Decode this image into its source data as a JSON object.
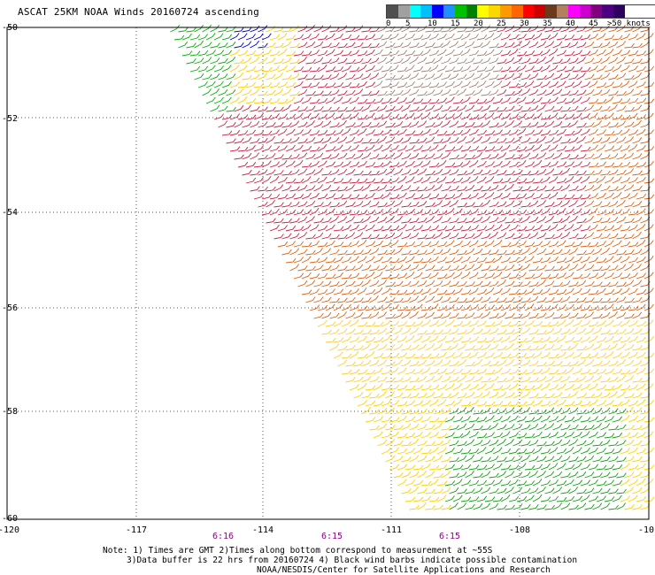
{
  "title": "ASCAT 25KM NOAA Winds 20160724 ascending",
  "legend": {
    "colors": [
      "#505050",
      "#a0a0a0",
      "#00ffff",
      "#00bfff",
      "#0000ff",
      "#1e90ff",
      "#00c000",
      "#008000",
      "#ffff00",
      "#ffd700",
      "#ff9900",
      "#ff6600",
      "#ff0000",
      "#cc0000",
      "#6b3a1e",
      "#b08060",
      "#ff00ff",
      "#cc00cc",
      "#800080",
      "#4b0082",
      "#2e0060"
    ],
    "labels": [
      "0",
      "5",
      "10",
      "15",
      "20",
      "25",
      "30",
      "35",
      "40",
      "45",
      ">50 knots"
    ]
  },
  "lat_labels": [
    "-50",
    "-52",
    "-54",
    "-56",
    "-58",
    "-60"
  ],
  "lon_labels": [
    "-120",
    "-117",
    "-114",
    "-111",
    "-108",
    "-10"
  ],
  "times": [
    "6:16",
    "6:15",
    "6:15"
  ],
  "notes": [
    "Note: 1) Times are GMT 2)Times along bottom correspond to measurement at ~55S",
    "3)Data buffer is 22 hrs from 20160724 4) Black wind barbs indicate possible contamination",
    "NOAA/NESDIS/Center for Satellite Applications and Research"
  ]
}
